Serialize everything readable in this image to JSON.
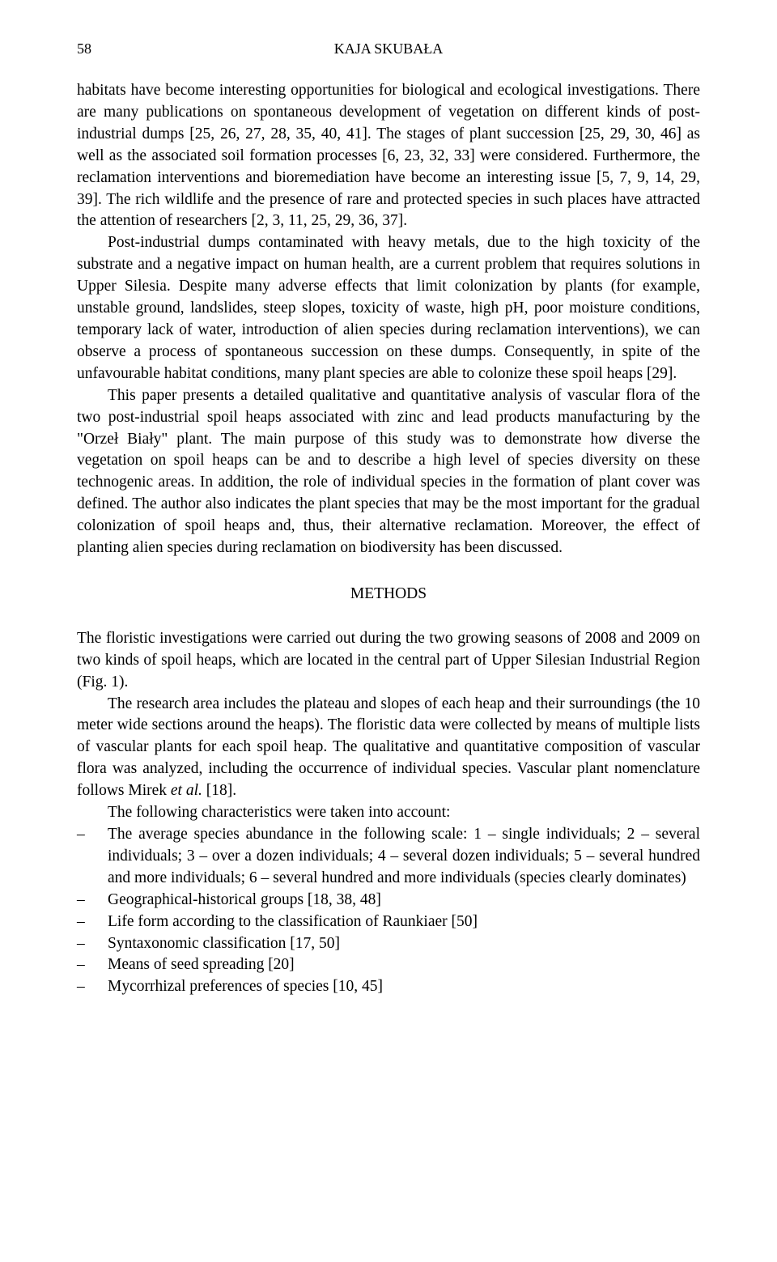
{
  "page_number": "58",
  "running_head": "KAJA SKUBAŁA",
  "paragraphs": {
    "p1": "habitats have become interesting opportunities for biological and ecological investigations. There are many publications on spontaneous development of vegetation on different kinds of post-industrial dumps [25, 26, 27, 28, 35, 40, 41]. The stages of plant succession [25, 29, 30, 46] as well as the associated soil formation processes [6, 23, 32, 33] were considered. Furthermore, the reclamation interventions and bioremediation have become an interesting issue [5, 7, 9, 14, 29, 39]. The rich wildlife and the presence of rare and protected species in such places have attracted the attention of researchers [2, 3, 11, 25, 29, 36, 37].",
    "p2": "Post-industrial dumps contaminated with heavy metals, due to the high toxicity of the substrate and a negative impact on human health, are a current problem that requires solutions in Upper Silesia. Despite many adverse effects that limit colonization by plants (for example, unstable ground, landslides, steep slopes, toxicity of waste, high pH, poor moisture conditions, temporary lack of water, introduction of alien species during reclamation interventions), we can observe a process of spontaneous succession on these dumps. Consequently, in spite of the unfavourable habitat conditions, many plant species are able to colonize these spoil heaps [29].",
    "p3": "This paper presents a detailed qualitative and quantitative analysis of vascular flora of the two post-industrial spoil heaps associated with  zinc and lead products manufacturing by the \"Orzeł Biały\" plant. The main purpose of this study was to demonstrate how diverse the vegetation on spoil heaps can be and to describe a high level of species diversity on these technogenic areas. In addition, the role of individual species in the formation of plant cover was defined. The author also indicates the plant species that may be the most important for the gradual colonization of spoil heaps and, thus, their alternative reclamation. Moreover, the effect of planting alien species during reclamation on biodiversity has been discussed."
  },
  "section_heading": "METHODS",
  "methods": {
    "m1": "The floristic investigations were carried out during the two growing seasons of 2008 and 2009 on two kinds of spoil heaps, which are located in the central part of Upper Silesian Industrial Region (Fig. 1).",
    "m2": "The research area includes the plateau and slopes of each heap and their surroundings (the 10 meter wide sections around the heaps). The floristic data were collected by means of multiple lists of vascular plants for each spoil heap. The qualitative and quantitative composition of vascular flora was analyzed, including the occurrence of individual species. Vascular plant nomenclature follows Mirek ",
    "m2_italic": "et al.",
    "m2_tail": " [18].",
    "m3": "The following characteristics were taken into account:"
  },
  "list_items": {
    "li1": "The average species abundance in the following scale: 1 – single individuals; 2 – several individuals; 3 – over a dozen individuals; 4 – several dozen individuals; 5 – several hundred and more individuals; 6 – several hundred and more individuals (species clearly dominates)",
    "li2": "Geographical-historical groups [18, 38, 48]",
    "li3": "Life form according to the classification of Raunkiaer [50]",
    "li4": "Syntaxonomic classification [17, 50]",
    "li5": "Means of seed spreading [20]",
    "li6": "Mycorrhizal preferences of species [10, 45]"
  },
  "dash": "–"
}
